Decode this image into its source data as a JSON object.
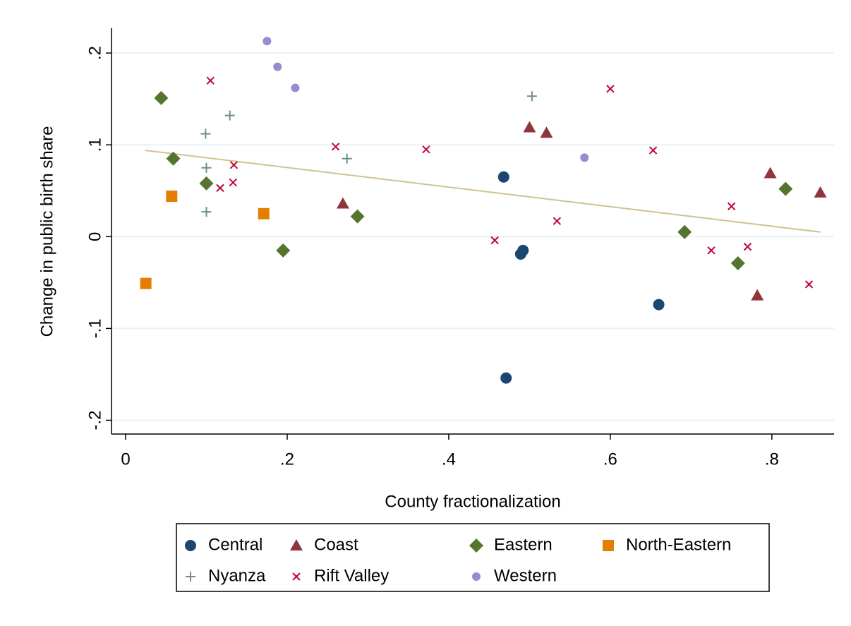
{
  "chart_data": {
    "type": "scatter",
    "x_label": "County fractionalization",
    "y_label": "Change in public birth share",
    "xlim": [
      -0.0175,
      0.877
    ],
    "ylim": [
      -0.215,
      0.227
    ],
    "xticks": [
      0,
      {
        "value": 0.2,
        "label": ".2"
      },
      {
        "value": 0.4,
        "label": ".4"
      },
      {
        "value": 0.6,
        "label": ".6"
      },
      {
        "value": 0.8,
        "label": ".8"
      }
    ],
    "yticks": [
      {
        "value": -0.2,
        "label": "-.2"
      },
      {
        "value": -0.1,
        "label": "-.1"
      },
      0,
      {
        "value": 0.1,
        "label": ".1"
      },
      {
        "value": 0.2,
        "label": ".2"
      }
    ],
    "grid": true,
    "series": [
      {
        "name": "Central",
        "color": "#1a476f",
        "marker": "circle",
        "x": [
          0.468,
          0.492,
          0.489,
          0.66,
          0.471
        ],
        "values": [
          0.065,
          -0.015,
          -0.019,
          -0.074,
          -0.154
        ]
      },
      {
        "name": "Coast",
        "color": "#90353b",
        "marker": "triangle",
        "x": [
          0.5,
          0.521,
          0.269,
          0.798,
          0.86,
          0.782
        ],
        "values": [
          0.119,
          0.113,
          0.036,
          0.069,
          0.048,
          -0.064
        ]
      },
      {
        "name": "Eastern",
        "color": "#55752f",
        "marker": "diamond",
        "x": [
          0.044,
          0.059,
          0.1,
          0.287,
          0.195,
          0.692,
          0.817,
          0.758
        ],
        "values": [
          0.151,
          0.085,
          0.058,
          0.022,
          -0.015,
          0.005,
          0.052,
          -0.029
        ]
      },
      {
        "name": "North-Eastern",
        "color": "#e37e00",
        "marker": "square",
        "x": [
          0.057,
          0.171,
          0.025
        ],
        "values": [
          0.044,
          0.025,
          -0.051
        ]
      },
      {
        "name": "Nyanza",
        "color": "#6e8e84",
        "marker": "plus",
        "x": [
          0.503,
          0.129,
          0.099,
          0.1,
          0.1,
          0.274
        ],
        "values": [
          0.153,
          0.132,
          0.112,
          0.075,
          0.027,
          0.085
        ]
      },
      {
        "name": "Rift Valley",
        "color": "#c10534",
        "marker": "x",
        "x": [
          0.105,
          0.26,
          0.372,
          0.134,
          0.117,
          0.133,
          0.6,
          0.653,
          0.534,
          0.457,
          0.75,
          0.725,
          0.77,
          0.846
        ],
        "values": [
          0.17,
          0.098,
          0.095,
          0.078,
          0.053,
          0.059,
          0.161,
          0.094,
          0.017,
          -0.004,
          0.033,
          -0.015,
          -0.011,
          -0.052
        ]
      },
      {
        "name": "Western",
        "color": "#938dd2",
        "marker": "smallcircle",
        "x": [
          0.175,
          0.188,
          0.21,
          0.568
        ],
        "values": [
          0.213,
          0.185,
          0.162,
          0.086
        ]
      }
    ],
    "fit_line": {
      "color": "#cfc48c",
      "x": [
        0.024,
        0.86
      ],
      "values": [
        0.094,
        0.005
      ]
    }
  }
}
